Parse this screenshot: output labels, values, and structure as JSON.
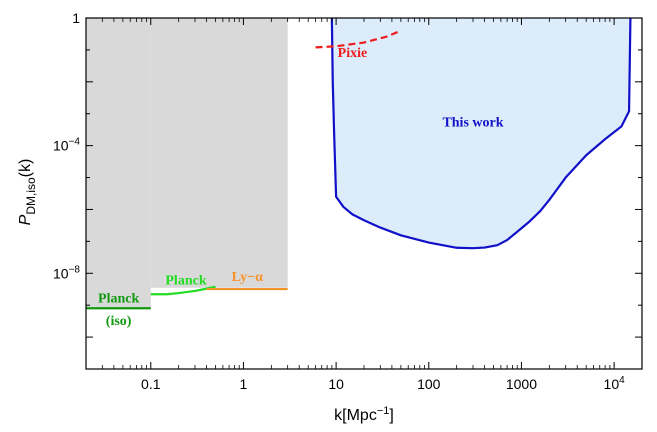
{
  "chart_data": {
    "type": "area",
    "xlabel": "k[Mpc",
    "xlabel_sup": "−1",
    "xlabel_close": "]",
    "ylabel_main": "P",
    "ylabel_sub": "DM,iso",
    "ylabel_tail": "(k)",
    "x_scale": "log",
    "y_scale": "log",
    "xlim": [
      0.02,
      20000
    ],
    "ylim": [
      1e-11,
      1
    ],
    "x_ticks": [
      {
        "value": 0.1,
        "label": "0.1"
      },
      {
        "value": 1,
        "label": "1"
      },
      {
        "value": 10,
        "label": "10"
      },
      {
        "value": 100,
        "label": "100"
      },
      {
        "value": 1000,
        "label": "1000"
      },
      {
        "value": 10000,
        "label": "10",
        "sup": "4"
      }
    ],
    "y_ticks": [
      {
        "value": 1,
        "label": "1",
        "sup": ""
      },
      {
        "value": 0.0001,
        "label": "10",
        "sup": "−4"
      },
      {
        "value": 1e-08,
        "label": "10",
        "sup": "−8"
      }
    ],
    "excluded_region": {
      "color": "#d9d9d9",
      "segments": [
        {
          "x": [
            0.02,
            0.1
          ],
          "y_upper": 8e-10
        },
        {
          "x": [
            0.1,
            3
          ],
          "y_upper": 3.5e-09
        }
      ]
    },
    "series": [
      {
        "name": "This work",
        "color": "#1010c8",
        "fill": "#dcecfb",
        "x": [
          9,
          9.2,
          9.5,
          10,
          12,
          15,
          20,
          30,
          50,
          100,
          200,
          300,
          400,
          550,
          700,
          900,
          1200,
          1600,
          2000,
          3000,
          5000,
          8000,
          12000,
          14500,
          15000
        ],
        "y": [
          1,
          0.01,
          0.000301,
          2.5e-06,
          1.2e-06,
          7e-07,
          4.6e-07,
          2.7e-07,
          1.55e-07,
          9.2e-08,
          6.3e-08,
          6.1e-08,
          6.4e-08,
          7.6e-08,
          1.1e-07,
          2e-07,
          4e-07,
          9e-07,
          2e-06,
          1e-05,
          5e-05,
          0.00016,
          0.0004,
          0.0012,
          1
        ]
      },
      {
        "name": "Pixie",
        "color": "#ee1c1c",
        "style": "dashed",
        "x": [
          6,
          10,
          20,
          35,
          50
        ],
        "y": [
          0.12,
          0.13,
          0.17,
          0.26,
          0.4
        ]
      },
      {
        "name": "Planck",
        "color": "#22dd22",
        "x": [
          0.1,
          0.15,
          0.2,
          0.3,
          0.4,
          0.5
        ],
        "y": [
          2.2e-09,
          2.2e-09,
          2.4e-09,
          2.8e-09,
          3.3e-09,
          3.8e-09
        ]
      },
      {
        "name": "Ly-α",
        "color": "#f5922a",
        "x": [
          0.4,
          3
        ],
        "y": [
          3.2e-09,
          3.2e-09
        ]
      },
      {
        "name": "Planck (iso)",
        "color": "#119a11",
        "x": [
          0.02,
          0.1
        ],
        "y": [
          8e-10,
          8e-10
        ]
      }
    ],
    "annotations": {
      "this_work": {
        "text": "This work",
        "color": "#1010c8",
        "at": [
          300,
          0.0004
        ]
      },
      "pixie": {
        "text": "Pixie",
        "color": "#ee1c1c",
        "at": [
          15,
          0.06
        ]
      },
      "planck_green": {
        "text": "Planck",
        "color": "#22dd22",
        "at": [
          0.24,
          4.5e-09
        ]
      },
      "lya": {
        "text": "Ly−α",
        "color": "#f5922a",
        "at": [
          1.1,
          5.8e-09
        ]
      },
      "planck_iso": {
        "text": "Planck",
        "color": "#119a11",
        "at": [
          0.045,
          1.2e-09
        ]
      },
      "planck_iso_sub": {
        "text": "(iso)",
        "color": "#119a11",
        "at": [
          0.045,
          2.4e-10
        ]
      }
    },
    "grid": false,
    "legend": "none"
  }
}
